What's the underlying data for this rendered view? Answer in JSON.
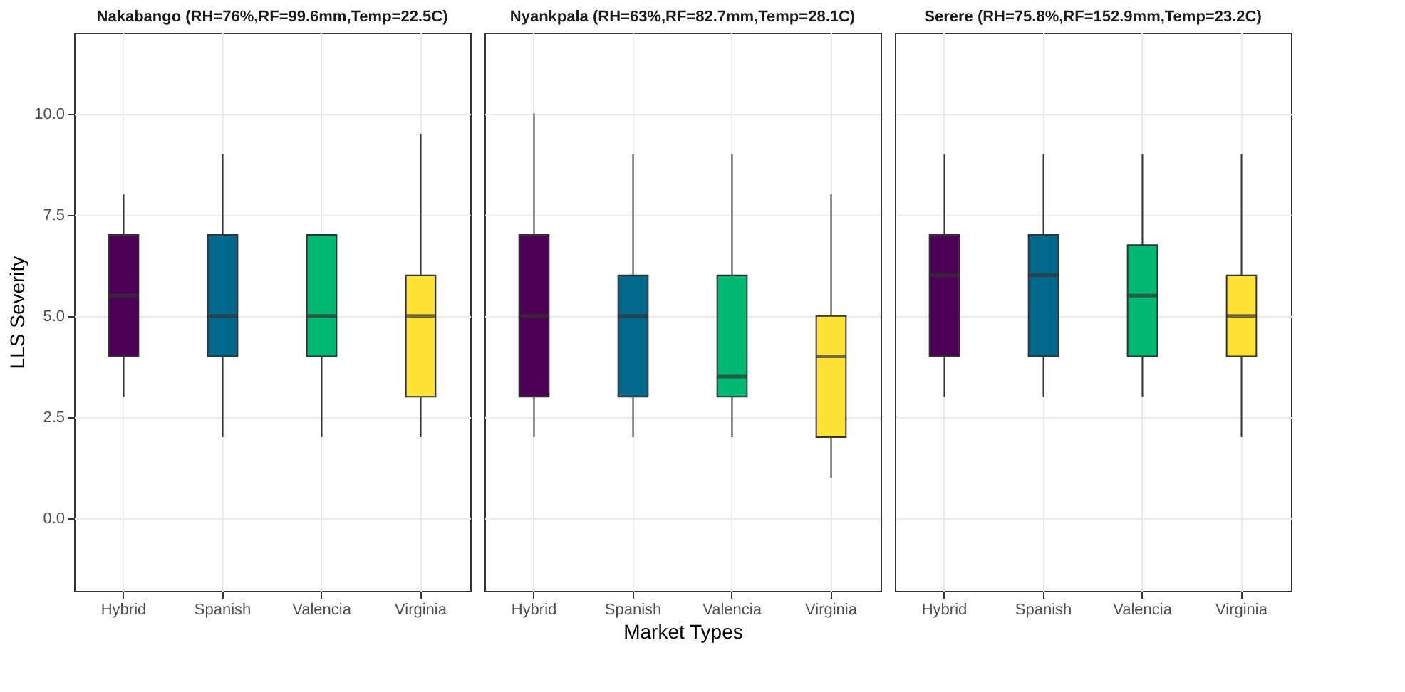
{
  "chart_data": [
    {
      "type": "box",
      "title": "Nakabango (RH=76%,RF=99.6mm,Temp=22.5C)",
      "ylabel": "LLS Severity",
      "categories": [
        "Hybrid",
        "Spanish",
        "Valencia",
        "Virginia"
      ],
      "colors": [
        "#4b0055",
        "#00688b",
        "#00b874",
        "#fde333"
      ],
      "boxes": [
        {
          "low": 3,
          "q1": 4,
          "median": 5.5,
          "q3": 7,
          "high": 8
        },
        {
          "low": 2,
          "q1": 4,
          "median": 5,
          "q3": 7,
          "high": 9
        },
        {
          "low": 2,
          "q1": 4,
          "median": 5,
          "q3": 7,
          "high": 7
        },
        {
          "low": 2,
          "q1": 3,
          "median": 5,
          "q3": 6,
          "high": 9.5
        }
      ],
      "ylim": [
        -1.8,
        12
      ],
      "yticks": [
        {
          "value": 0,
          "label": "0.0"
        },
        {
          "value": 2.5,
          "label": "2.5"
        },
        {
          "value": 5,
          "label": "5.0"
        },
        {
          "value": 7.5,
          "label": "7.5"
        },
        {
          "value": 10,
          "label": "10.0"
        }
      ],
      "grid": true
    },
    {
      "type": "box",
      "title": "Nyankpala (RH=63%,RF=82.7mm,Temp=28.1C)",
      "xlabel": "Market Types",
      "categories": [
        "Hybrid",
        "Spanish",
        "Valencia",
        "Virginia"
      ],
      "colors": [
        "#4b0055",
        "#00688b",
        "#00b874",
        "#fde333"
      ],
      "boxes": [
        {
          "low": 2,
          "q1": 3,
          "median": 5,
          "q3": 7,
          "high": 10
        },
        {
          "low": 2,
          "q1": 3,
          "median": 5,
          "q3": 6,
          "high": 9
        },
        {
          "low": 2,
          "q1": 3,
          "median": 3.5,
          "q3": 6,
          "high": 9
        },
        {
          "low": 1,
          "q1": 2,
          "median": 4,
          "q3": 5,
          "high": 8
        }
      ],
      "ylim": [
        -1.8,
        12
      ],
      "yticks": [
        0,
        2.5,
        5,
        7.5,
        10
      ],
      "grid": true,
      "tick_labels": "x"
    },
    {
      "type": "box",
      "title": "Serere (RH=75.8%,RF=152.9mm,Temp=23.2C)",
      "categories": [
        "Hybrid",
        "Spanish",
        "Valencia",
        "Virginia"
      ],
      "colors": [
        "#4b0055",
        "#00688b",
        "#00b874",
        "#fde333"
      ],
      "boxes": [
        {
          "low": 3,
          "q1": 4,
          "median": 6,
          "q3": 7,
          "high": 9
        },
        {
          "low": 3,
          "q1": 4,
          "median": 6,
          "q3": 7,
          "high": 9
        },
        {
          "low": 3,
          "q1": 4,
          "median": 5.5,
          "q3": 6.75,
          "high": 9
        },
        {
          "low": 2,
          "q1": 4,
          "median": 5,
          "q3": 6,
          "high": 9
        }
      ],
      "ylim": [
        -1.8,
        12
      ],
      "yticks": [
        0,
        2.5,
        5,
        7.5,
        10
      ],
      "grid": true,
      "tick_labels": "x"
    }
  ]
}
